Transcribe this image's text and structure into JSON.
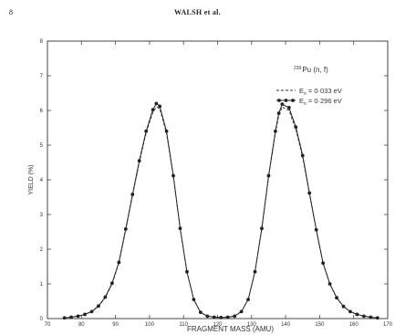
{
  "page": {
    "number": "8",
    "running_head": "WALSH et al."
  },
  "chart_data": {
    "type": "line",
    "title": "",
    "xlabel": "FRAGMENT MASS (AMU)",
    "ylabel": "YIELD (%)",
    "xlim": [
      70,
      170
    ],
    "ylim": [
      0,
      8
    ],
    "xticks": [
      "70",
      "80",
      "90",
      "100",
      "110",
      "120",
      "130",
      "140",
      "150",
      "160",
      "170"
    ],
    "yticks": [
      "0",
      "1",
      "2",
      "3",
      "4",
      "5",
      "6",
      "7",
      "8"
    ],
    "grid": false,
    "legend": {
      "placement": "top-right",
      "reaction_sup": "239",
      "reaction": "Pu (n, f)",
      "entries": [
        {
          "prefix": "E",
          "sub": "n",
          "text": " = 0·033 eV",
          "style": "dashed"
        },
        {
          "prefix": "E",
          "sub": "n",
          "text": " = 0·296 eV",
          "style": "solid-dots"
        }
      ]
    },
    "series": [
      {
        "name": "En = 0·033 eV",
        "x": [
          75,
          77,
          79,
          81,
          83,
          85,
          87,
          89,
          91,
          93,
          95,
          97,
          99,
          101,
          102,
          103,
          105,
          107,
          109,
          111,
          113,
          115,
          117,
          119,
          121,
          123,
          125,
          127,
          129,
          131,
          133,
          135,
          137,
          138,
          139,
          141,
          143,
          145,
          147,
          149,
          151,
          153,
          155,
          157,
          159,
          161,
          163,
          165,
          167
        ],
        "y": [
          0.02,
          0.04,
          0.07,
          0.12,
          0.2,
          0.35,
          0.6,
          1.0,
          1.6,
          2.55,
          3.55,
          4.5,
          5.35,
          5.95,
          6.1,
          6.05,
          5.35,
          4.1,
          2.6,
          1.35,
          0.55,
          0.18,
          0.07,
          0.04,
          0.03,
          0.04,
          0.07,
          0.2,
          0.55,
          1.35,
          2.6,
          4.1,
          5.35,
          5.85,
          6.1,
          6.0,
          5.45,
          4.65,
          3.6,
          2.55,
          1.6,
          1.0,
          0.6,
          0.35,
          0.2,
          0.12,
          0.07,
          0.04,
          0.02
        ]
      },
      {
        "name": "En = 0·296 eV",
        "x": [
          75,
          77,
          79,
          81,
          83,
          85,
          87,
          89,
          91,
          93,
          95,
          97,
          99,
          101,
          102,
          103,
          105,
          107,
          109,
          111,
          113,
          115,
          117,
          119,
          121,
          123,
          125,
          127,
          129,
          131,
          133,
          135,
          137,
          138,
          139,
          141,
          143,
          145,
          147,
          149,
          151,
          153,
          155,
          157,
          159,
          161,
          163,
          165,
          167
        ],
        "y": [
          0.02,
          0.04,
          0.07,
          0.12,
          0.2,
          0.36,
          0.62,
          1.02,
          1.62,
          2.58,
          3.58,
          4.55,
          5.4,
          6.02,
          6.2,
          6.12,
          5.4,
          4.12,
          2.6,
          1.35,
          0.55,
          0.18,
          0.07,
          0.04,
          0.03,
          0.04,
          0.07,
          0.2,
          0.55,
          1.35,
          2.6,
          4.12,
          5.4,
          5.92,
          6.18,
          6.08,
          5.52,
          4.7,
          3.62,
          2.56,
          1.6,
          1.0,
          0.6,
          0.35,
          0.2,
          0.12,
          0.07,
          0.04,
          0.02
        ]
      }
    ]
  }
}
